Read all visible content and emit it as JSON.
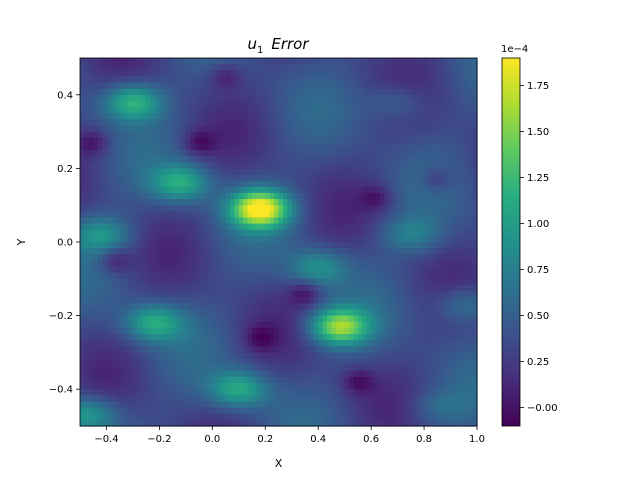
{
  "chart_data": {
    "type": "heatmap",
    "title": "u_1  Error",
    "title_parts": {
      "symbol": "u",
      "subscript": "1",
      "word": "Error"
    },
    "xlabel": "X",
    "ylabel": "Y",
    "xlim": [
      -0.5,
      1.0
    ],
    "ylim": [
      -0.5,
      0.5
    ],
    "xticks": [
      "−0.4",
      "−0.2",
      "0.0",
      "0.2",
      "0.4",
      "0.6",
      "0.8",
      "1.0"
    ],
    "yticks": [
      "−0.4",
      "−0.2",
      "0.0",
      "0.2",
      "0.4"
    ],
    "colormap": "viridis",
    "colorbar": {
      "range": [
        -0.1,
        1.9
      ],
      "ticks": [
        "−0.00",
        "0.25",
        "0.50",
        "0.75",
        "1.00",
        "1.25",
        "1.50",
        "1.75"
      ],
      "multiplier": "1e−4"
    },
    "base_level": 0.35,
    "hotspots": [
      {
        "x": 0.18,
        "y": 0.09,
        "value": 1.9
      },
      {
        "x": 0.48,
        "y": -0.23,
        "value": 1.55
      },
      {
        "x": -0.3,
        "y": 0.38,
        "value": 1.2
      },
      {
        "x": -0.12,
        "y": 0.16,
        "value": 1.1
      },
      {
        "x": -0.22,
        "y": -0.22,
        "value": 1.1
      },
      {
        "x": 0.1,
        "y": -0.4,
        "value": 1.1
      },
      {
        "x": 0.4,
        "y": -0.07,
        "value": 0.9
      },
      {
        "x": -0.42,
        "y": 0.02,
        "value": 0.9
      },
      {
        "x": 0.75,
        "y": 0.02,
        "value": 0.75
      },
      {
        "x": 0.7,
        "y": 0.38,
        "value": 0.65
      },
      {
        "x": 0.85,
        "y": -0.45,
        "value": 0.6
      },
      {
        "x": -0.47,
        "y": -0.47,
        "value": 1.0
      },
      {
        "x": 0.95,
        "y": -0.17,
        "value": 0.75
      }
    ],
    "lowspots": [
      {
        "x": -0.37,
        "y": -0.05,
        "value": 0.0
      },
      {
        "x": 0.35,
        "y": -0.14,
        "value": 0.0
      },
      {
        "x": 0.62,
        "y": 0.12,
        "value": 0.05
      },
      {
        "x": -0.05,
        "y": 0.27,
        "value": 0.0
      },
      {
        "x": 0.85,
        "y": 0.17,
        "value": 0.05
      },
      {
        "x": 0.55,
        "y": -0.38,
        "value": 0.0
      },
      {
        "x": -0.45,
        "y": 0.27,
        "value": 0.0
      },
      {
        "x": 0.05,
        "y": 0.45,
        "value": 0.05
      },
      {
        "x": 0.18,
        "y": -0.26,
        "value": 0.05
      }
    ]
  }
}
